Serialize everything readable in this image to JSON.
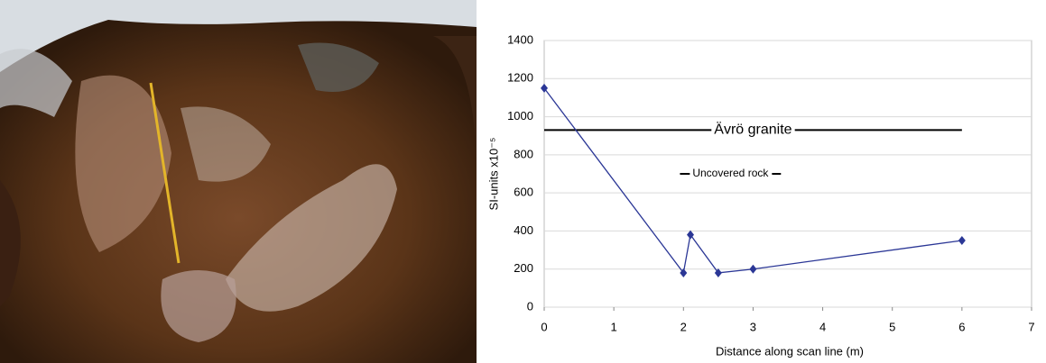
{
  "chart_data": {
    "type": "line",
    "x_label": "Distance along scan line (m)",
    "y_label": "SI-units x10⁻⁵",
    "x": [
      0,
      2,
      2.1,
      2.5,
      3,
      6
    ],
    "series": [
      {
        "color": "#2b3796",
        "values": [
          1150,
          180,
          380,
          180,
          200,
          350
        ]
      }
    ],
    "xlim": [
      0,
      7
    ],
    "xticks": [
      0,
      1,
      2,
      3,
      4,
      5,
      6,
      7
    ],
    "ylim": [
      0,
      1400
    ],
    "yticks": [
      0,
      200,
      400,
      600,
      800,
      1000,
      1200,
      1400
    ],
    "grid": true,
    "annotations": [
      {
        "text": "Ävrö granite",
        "y": 930,
        "x": [
          0,
          6
        ],
        "font_size": 16
      },
      {
        "text": "Uncovered rock",
        "y": 700,
        "x": [
          1.95,
          3.4
        ],
        "font_size": 12
      }
    ]
  }
}
